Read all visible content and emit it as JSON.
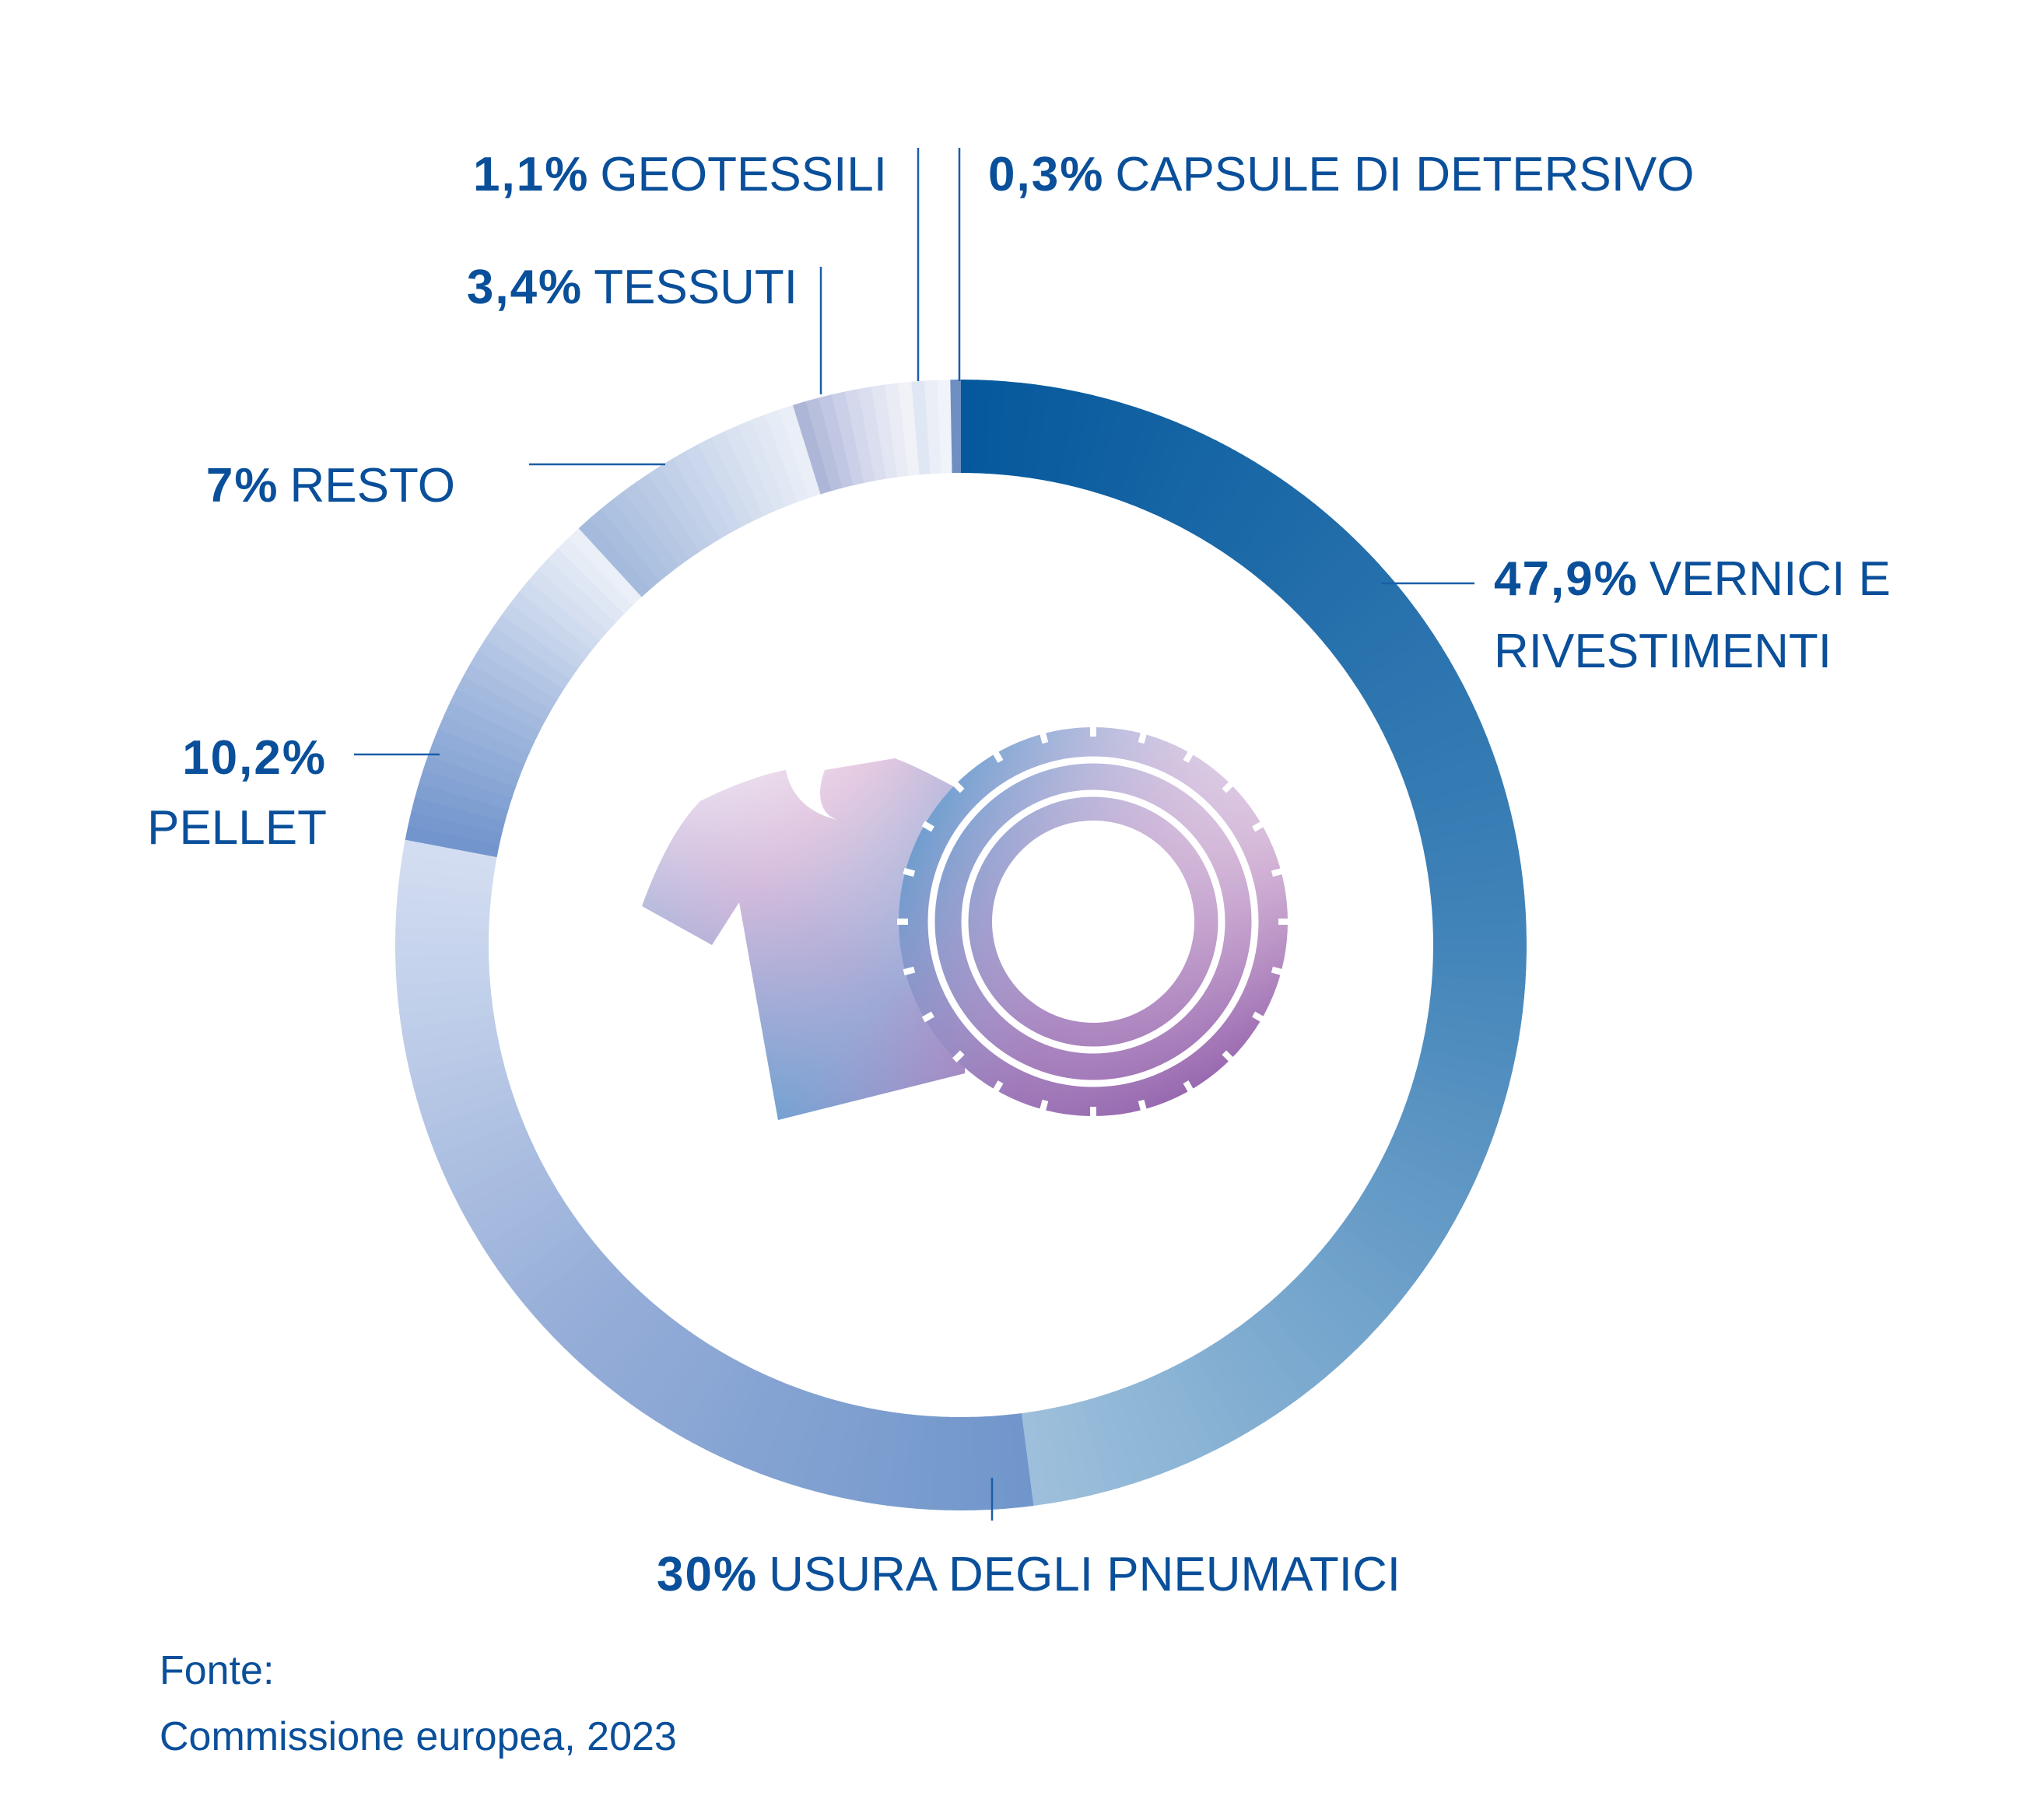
{
  "chart_data": {
    "type": "pie",
    "title": "",
    "slices": [
      {
        "pct": "47,9%",
        "label": "VERNICI E",
        "label2": "RIVESTIMENTI",
        "value": 47.9,
        "colors": [
          "#04589c",
          "#3f82b8",
          "#9ec0dc"
        ]
      },
      {
        "pct": "",
        "label": "",
        "label2": "",
        "value": 0,
        "colors": [
          "#d7dff0",
          "#d7dff0",
          "#d7dff0"
        ]
      },
      {
        "pct": "30%",
        "label": "USURA DEGLI PNEUMATICI",
        "label2": "",
        "value": 30,
        "colors": [
          "#7096cb",
          "#96aed8",
          "#d4def2"
        ]
      },
      {
        "pct": "10,2%",
        "label": "",
        "label2": "PELLET",
        "value": 10.2,
        "colors": [
          "#6f93cb",
          "#a8bde0",
          "#eef2f9"
        ]
      },
      {
        "pct": "7%",
        "label": "RESTO",
        "label2": "",
        "value": 7,
        "colors": [
          "#a2b9dc",
          "#c7d4ea",
          "#ecf1f8"
        ]
      },
      {
        "pct": "3,4%",
        "label": "TESSUTI",
        "label2": "",
        "value": 3.4,
        "colors": [
          "#a9b2d6",
          "#d4d8ec",
          "#f4f5fa"
        ]
      },
      {
        "pct": "1,1%",
        "label": "GEOTESSILI",
        "label2": "",
        "value": 1.1,
        "colors": [
          "#dbe3f2",
          "#e9eef7",
          "#f4f7fb"
        ]
      },
      {
        "pct": "0,3%",
        "label": "CAPSULE DI DETERSIVO",
        "label2": "",
        "value": 0.3,
        "colors": [
          "#6f8fc2",
          "#6f8fc2",
          "#6f8fc2"
        ]
      }
    ]
  },
  "source": {
    "line1": "Fonte:",
    "line2": "Commissione europea, 2023"
  },
  "icons": [
    "t-shirt-icon",
    "tire-icon"
  ]
}
